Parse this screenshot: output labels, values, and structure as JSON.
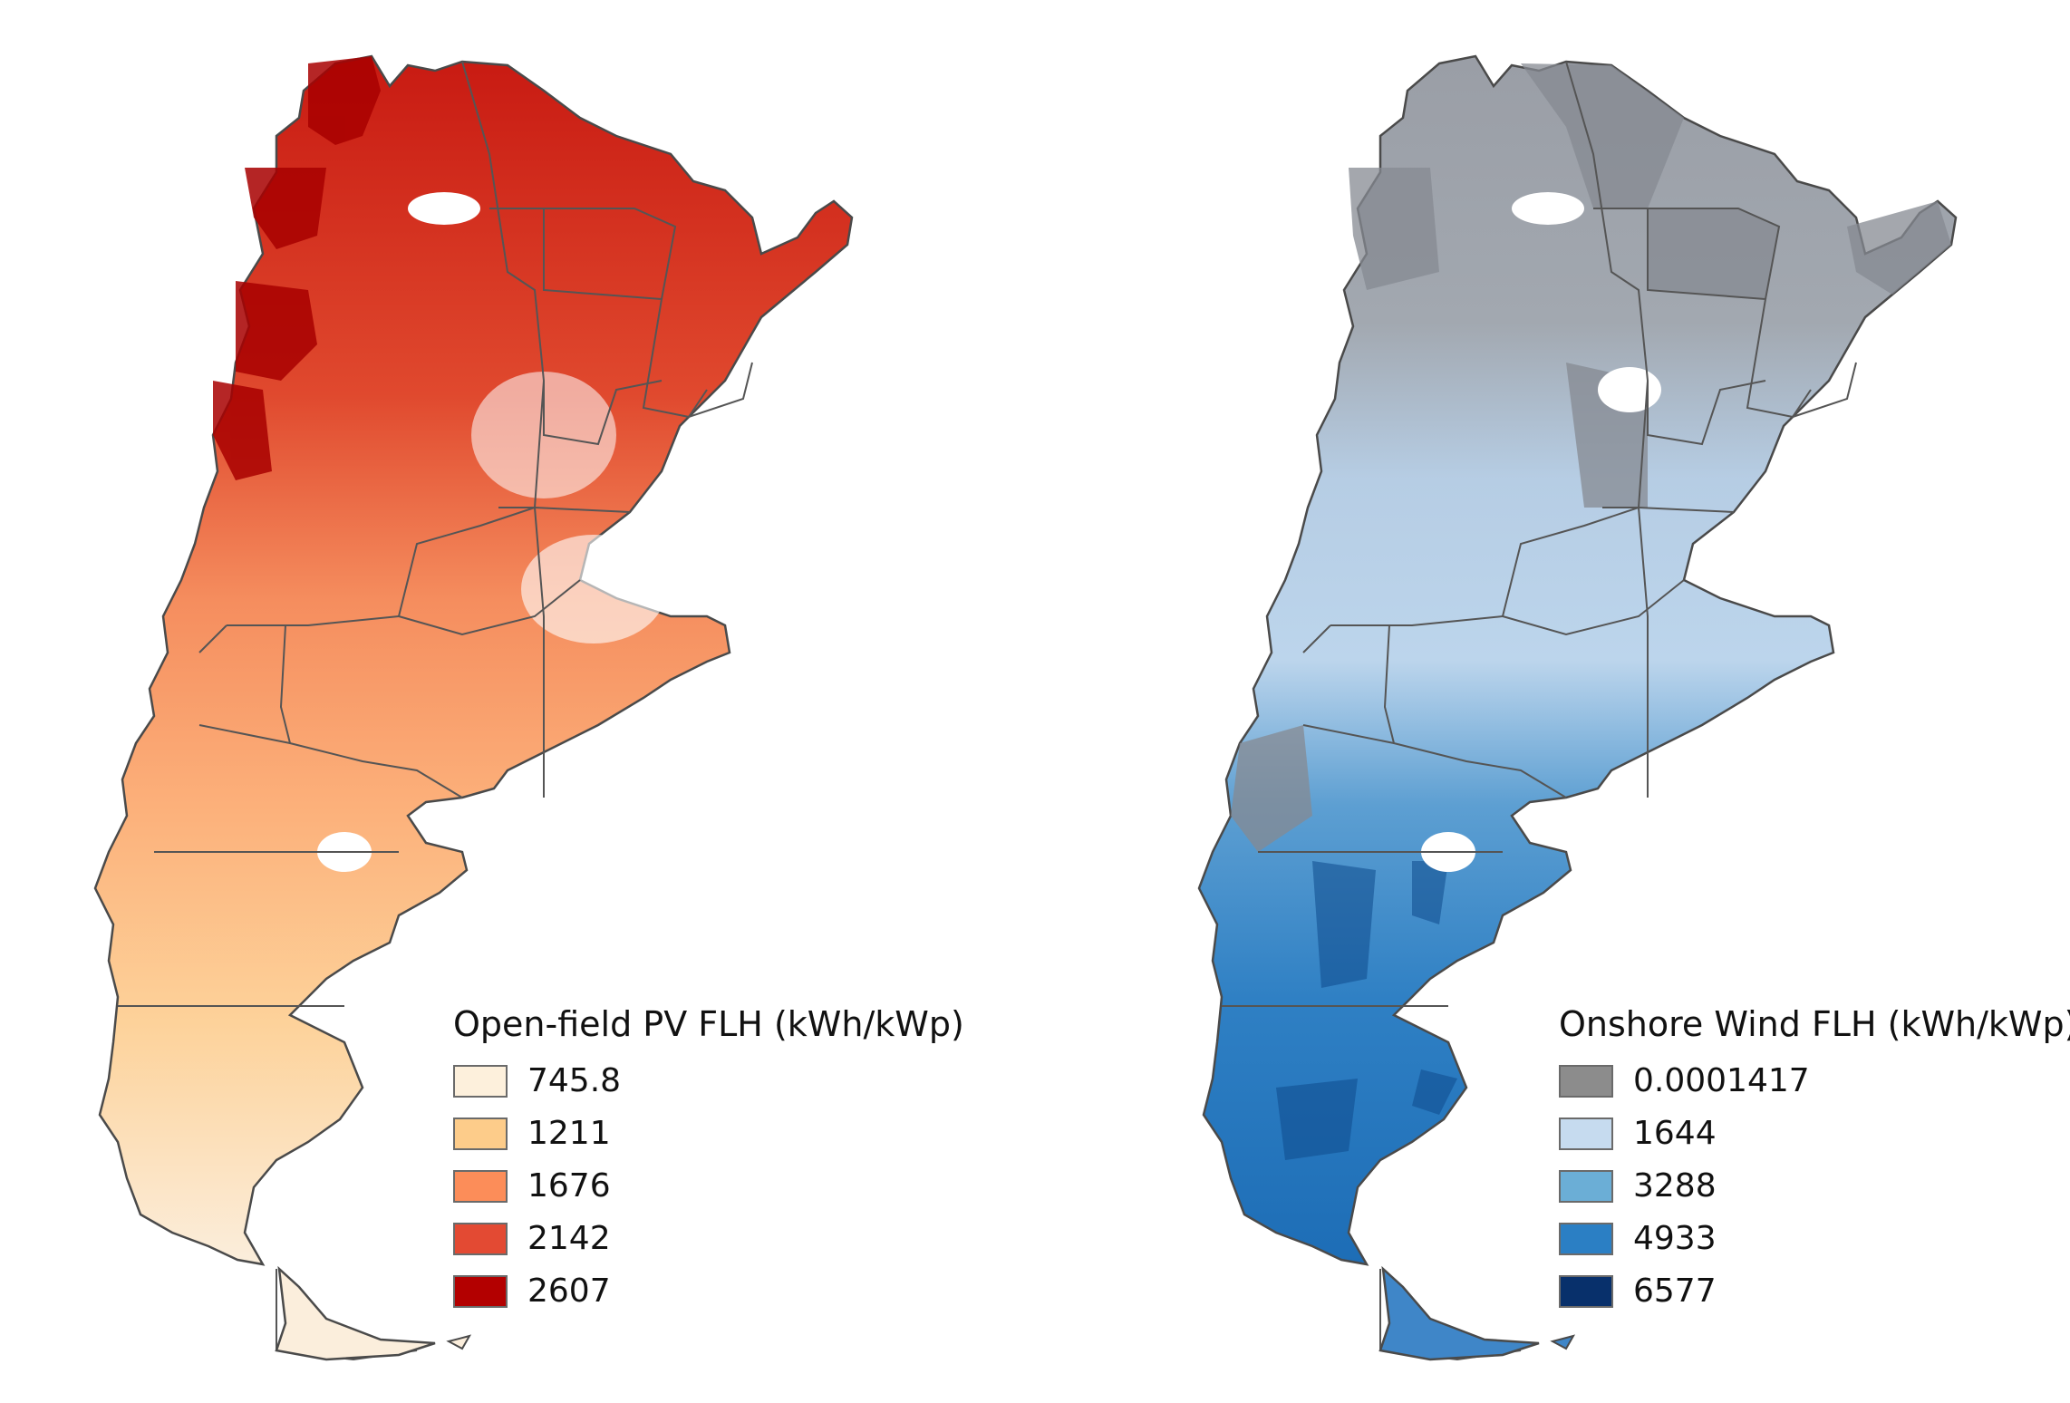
{
  "maps": {
    "pv": {
      "legend_title": "Open-field PV FLH (kWh/kWp)",
      "classes": [
        {
          "label": "745.8",
          "color": "#fdf0dc"
        },
        {
          "label": "1211",
          "color": "#fdcc8a"
        },
        {
          "label": "1676",
          "color": "#fc8d59"
        },
        {
          "label": "2142",
          "color": "#e34a33"
        },
        {
          "label": "2607",
          "color": "#b30000"
        }
      ]
    },
    "wind": {
      "legend_title": "Onshore Wind FLH (kWh/kWp)",
      "classes": [
        {
          "label": "0.0001417",
          "color": "#8c8c8c"
        },
        {
          "label": "1644",
          "color": "#c6dbef"
        },
        {
          "label": "3288",
          "color": "#6baed6"
        },
        {
          "label": "4933",
          "color": "#2b7fc4"
        },
        {
          "label": "6577",
          "color": "#08306b"
        }
      ]
    }
  }
}
